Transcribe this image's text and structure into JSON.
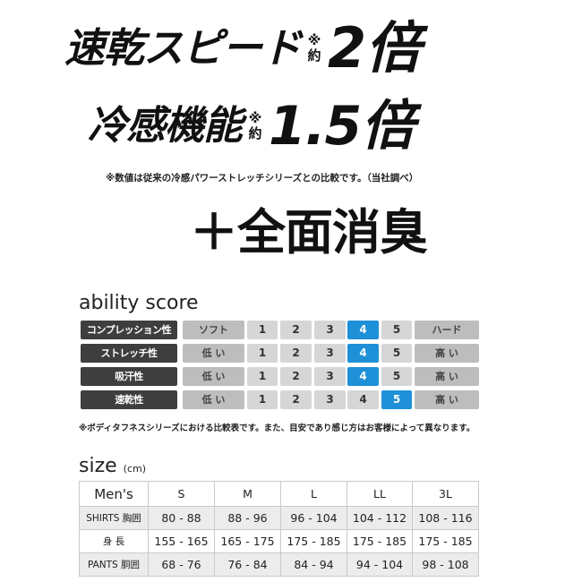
{
  "headline": {
    "line1": {
      "text": "速乾スピード",
      "mark": "※",
      "about": "約",
      "value": "2倍"
    },
    "line2": {
      "text": "冷感機能",
      "mark": "※",
      "about": "約",
      "value": "1.5倍"
    },
    "note": "※数値は従来の冷感パワーストレッチシリーズとの比較です。（当社調べ）",
    "deodorant": "＋全面消臭"
  },
  "ability": {
    "title": "ability score",
    "scale": [
      "1",
      "2",
      "3",
      "4",
      "5"
    ],
    "accent": "#1e90d8",
    "rows": [
      {
        "label": "コンプレッション性",
        "low": "ソフト",
        "high": "ハード",
        "score": 4
      },
      {
        "label": "ストレッチ性",
        "low": "低 い",
        "high": "高 い",
        "score": 4
      },
      {
        "label": "吸汗性",
        "low": "低 い",
        "high": "高 い",
        "score": 4
      },
      {
        "label": "速乾性",
        "low": "低 い",
        "high": "高 い",
        "score": 5
      }
    ],
    "footnote": "※ボディタフネスシリーズにおける比較表です。また、目安であり感じ方はお客様によって異なります。"
  },
  "size": {
    "title": "size",
    "unit": "(cm)",
    "headers": [
      "Men's",
      "S",
      "M",
      "L",
      "LL",
      "3L"
    ],
    "rows": [
      [
        "SHIRTS 胸囲",
        "80 - 88",
        "88 - 96",
        "96 - 104",
        "104 - 112",
        "108 - 116"
      ],
      [
        "身 長",
        "155 - 165",
        "165 - 175",
        "175 - 185",
        "175 - 185",
        "175 - 185"
      ],
      [
        "PANTS 胴囲",
        "68 - 76",
        "76 - 84",
        "84 - 94",
        "94 - 104",
        "98 - 108"
      ]
    ]
  }
}
